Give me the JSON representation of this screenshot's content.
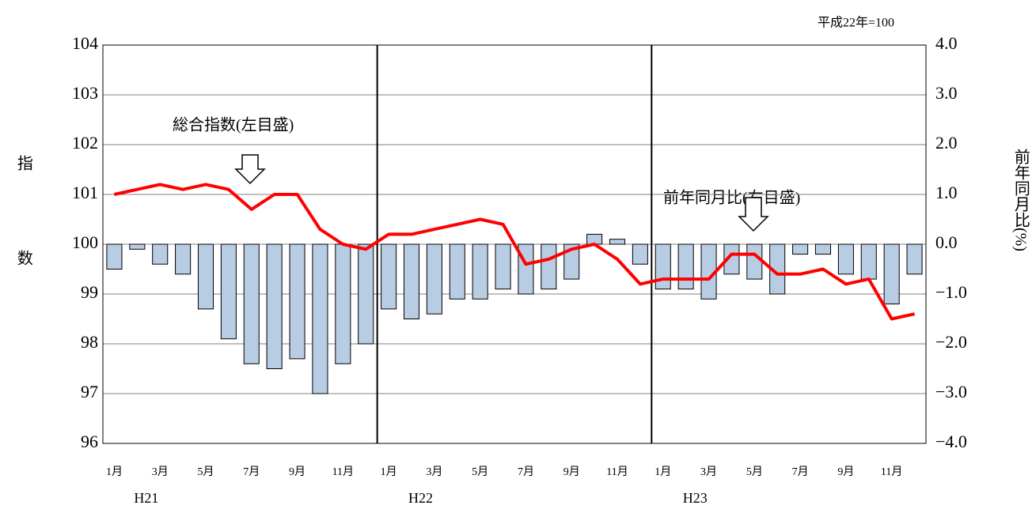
{
  "chart_data": {
    "type": "bar_line",
    "subtitle": "平成22年=100",
    "ylabel": "指数",
    "y2label": "前年同月比(%)",
    "categories": [
      "1月",
      null,
      "3月",
      null,
      "5月",
      null,
      "7月",
      null,
      "9月",
      null,
      "11月",
      null,
      "1月",
      null,
      "3月",
      null,
      "5月",
      null,
      "7月",
      null,
      "9月",
      null,
      "11月",
      null,
      "1月",
      null,
      "3月",
      null,
      "5月",
      null,
      "7月",
      null,
      "9月",
      null,
      "11月",
      null
    ],
    "years": [
      "H21",
      "H22",
      "H23"
    ],
    "series": [
      {
        "type": "line",
        "color": "#ff0000",
        "values": [
          101.0,
          101.1,
          101.2,
          101.1,
          101.2,
          101.1,
          100.7,
          101.0,
          101.0,
          100.3,
          100.0,
          99.9,
          100.2,
          100.2,
          100.3,
          100.4,
          100.5,
          100.4,
          99.6,
          99.7,
          99.9,
          100.0,
          99.7,
          99.2,
          99.3,
          99.3,
          99.3,
          99.8,
          99.8,
          99.4,
          99.4,
          99.5,
          99.2,
          99.3,
          98.5,
          98.6
        ]
      },
      {
        "type": "bar",
        "color": "#b8cce4",
        "axis": "y2",
        "values": [
          -0.5,
          -0.1,
          -0.4,
          -0.6,
          -1.3,
          -1.9,
          -2.4,
          -2.5,
          -2.3,
          -3.0,
          -2.4,
          -2.0,
          -1.3,
          -1.5,
          -1.4,
          -1.1,
          -1.1,
          -0.9,
          -1.0,
          -0.9,
          -0.7,
          0.2,
          0.1,
          -0.4,
          -0.9,
          -0.9,
          -1.1,
          -0.6,
          -0.7,
          -1.0,
          -0.2,
          -0.2,
          -0.6,
          -0.7,
          -1.2,
          -0.6
        ]
      }
    ],
    "ylim": [
      96,
      104
    ],
    "yticks": [
      96,
      97,
      98,
      99,
      100,
      101,
      102,
      103,
      104
    ],
    "y2lim": [
      -4,
      4
    ],
    "y2ticks": [
      {
        "value": -4,
        "label": "−4.0"
      },
      {
        "value": -3,
        "label": "−3.0"
      },
      {
        "value": -2,
        "label": "−2.0"
      },
      {
        "value": -1,
        "label": "−1.0"
      },
      {
        "value": 0,
        "label": "0.0"
      },
      {
        "value": 1,
        "label": "1.0"
      },
      {
        "value": 2,
        "label": "2.0"
      },
      {
        "value": 3,
        "label": "3.0"
      },
      {
        "value": 4,
        "label": "4.0"
      }
    ],
    "annotations": [
      "総合指数(左目盛)",
      "前年同月比(右目盛)"
    ],
    "grid": true
  }
}
